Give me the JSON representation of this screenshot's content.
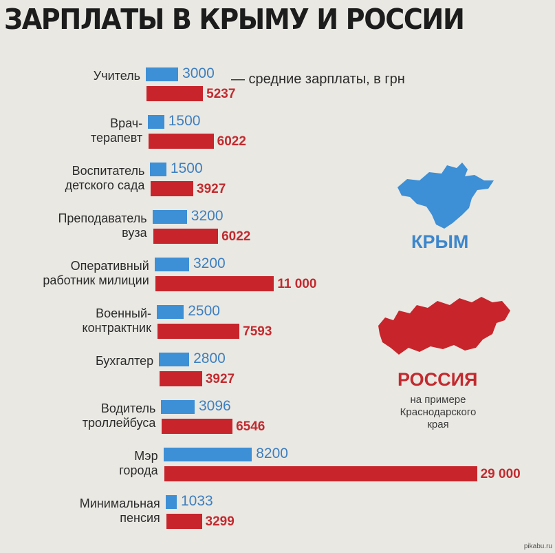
{
  "title": "ЗАРПЛАТЫ В КРЫМУ И РОССИИ",
  "note": "— средние зарплаты, в грн",
  "legend": {
    "crimea": {
      "label": "КРЫМ",
      "color": "#3d8fd6"
    },
    "russia": {
      "label": "РОССИЯ",
      "color": "#c8242b",
      "sublabel": [
        "на примере",
        "Краснодарского",
        "края"
      ]
    }
  },
  "watermark": "pikabu.ru",
  "chart_data": {
    "type": "bar",
    "orientation": "horizontal",
    "title": "ЗАРПЛАТЫ В КРЫМУ И РОССИИ",
    "categories": [
      [
        "Учитель"
      ],
      [
        "Врач-",
        "терапевт"
      ],
      [
        "Воспитатель",
        "детского сада"
      ],
      [
        "Преподаватель",
        "вуза"
      ],
      [
        "Оперативный",
        "работник милиции"
      ],
      [
        "Военный-",
        "контрактник"
      ],
      [
        "Бухгалтер"
      ],
      [
        "Водитель",
        "троллейбуса"
      ],
      [
        "Мэр",
        "города"
      ],
      [
        "Минимальная",
        "пенсия"
      ]
    ],
    "series": [
      {
        "name": "КРЫМ",
        "values": [
          3000,
          1500,
          1500,
          3200,
          3200,
          2500,
          2800,
          3096,
          8200,
          1033
        ],
        "labels": [
          "3000",
          "1500",
          "1500",
          "3200",
          "3200",
          "2500",
          "2800",
          "3096",
          "8200",
          "1033"
        ]
      },
      {
        "name": "РОССИЯ",
        "values": [
          5237,
          6022,
          3927,
          6022,
          11000,
          7593,
          3927,
          6546,
          29000,
          3299
        ],
        "labels": [
          "5237",
          "6022",
          "3927",
          "6022",
          "11 000",
          "7593",
          "3927",
          "6546",
          "29 000",
          "3299"
        ]
      }
    ]
  }
}
